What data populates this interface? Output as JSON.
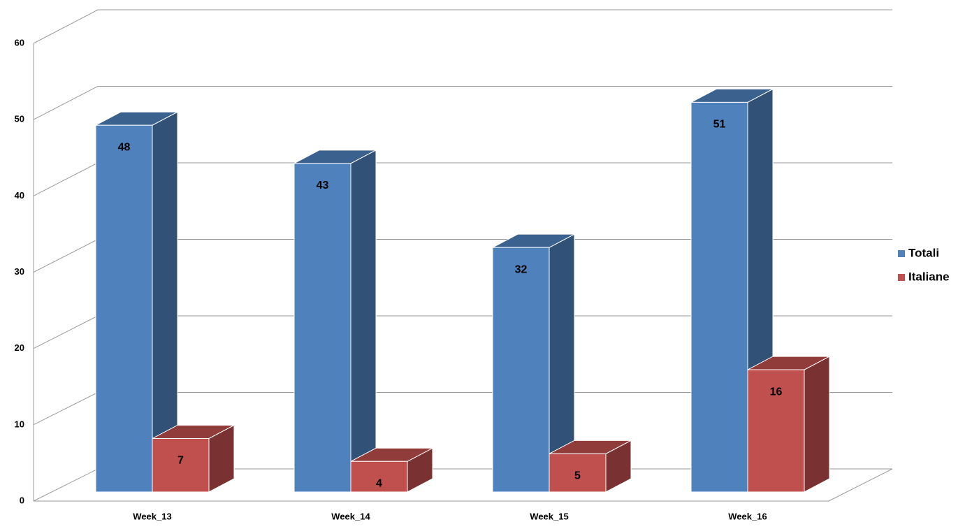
{
  "chart_data": {
    "type": "bar",
    "categories": [
      "Week_13",
      "Week_14",
      "Week_15",
      "Week_16"
    ],
    "series": [
      {
        "name": "Totali",
        "color": "#4F81BD",
        "values": [
          48,
          43,
          32,
          51
        ]
      },
      {
        "name": "Italiane",
        "color": "#C0504D",
        "values": [
          7,
          4,
          5,
          16
        ]
      }
    ],
    "ylim": [
      0,
      60
    ],
    "yticks": [
      0,
      10,
      20,
      30,
      40,
      50,
      60
    ],
    "grid": true,
    "legend": "right"
  }
}
